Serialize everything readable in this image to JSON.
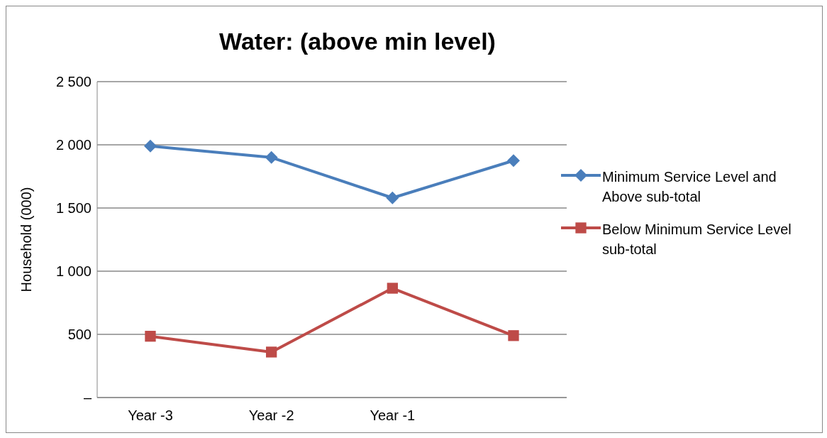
{
  "chart_data": {
    "type": "line",
    "title": "Water: (above min level)",
    "ylabel": "Household (000)",
    "categories": [
      "Year -3",
      "Year -2",
      "Year -1",
      null
    ],
    "series": [
      {
        "name": "Minimum Service Level and Above sub-total",
        "color": "#4a7ebb",
        "marker": "diamond",
        "values": [
          1990,
          1900,
          1580,
          1875
        ]
      },
      {
        "name": "Below Minimum Service Level sub-total",
        "color": "#be4b48",
        "marker": "square",
        "values": [
          485,
          360,
          865,
          490
        ]
      }
    ],
    "ylim": [
      0,
      2500
    ],
    "yticks": [
      {
        "value": 0,
        "label": "–"
      },
      {
        "value": 500,
        "label": "500"
      },
      {
        "value": 1000,
        "label": "1 000"
      },
      {
        "value": 1500,
        "label": "1 500"
      },
      {
        "value": 2000,
        "label": "2 000"
      },
      {
        "value": 2500,
        "label": "2 500"
      }
    ],
    "grid": "y",
    "legend": "right"
  }
}
